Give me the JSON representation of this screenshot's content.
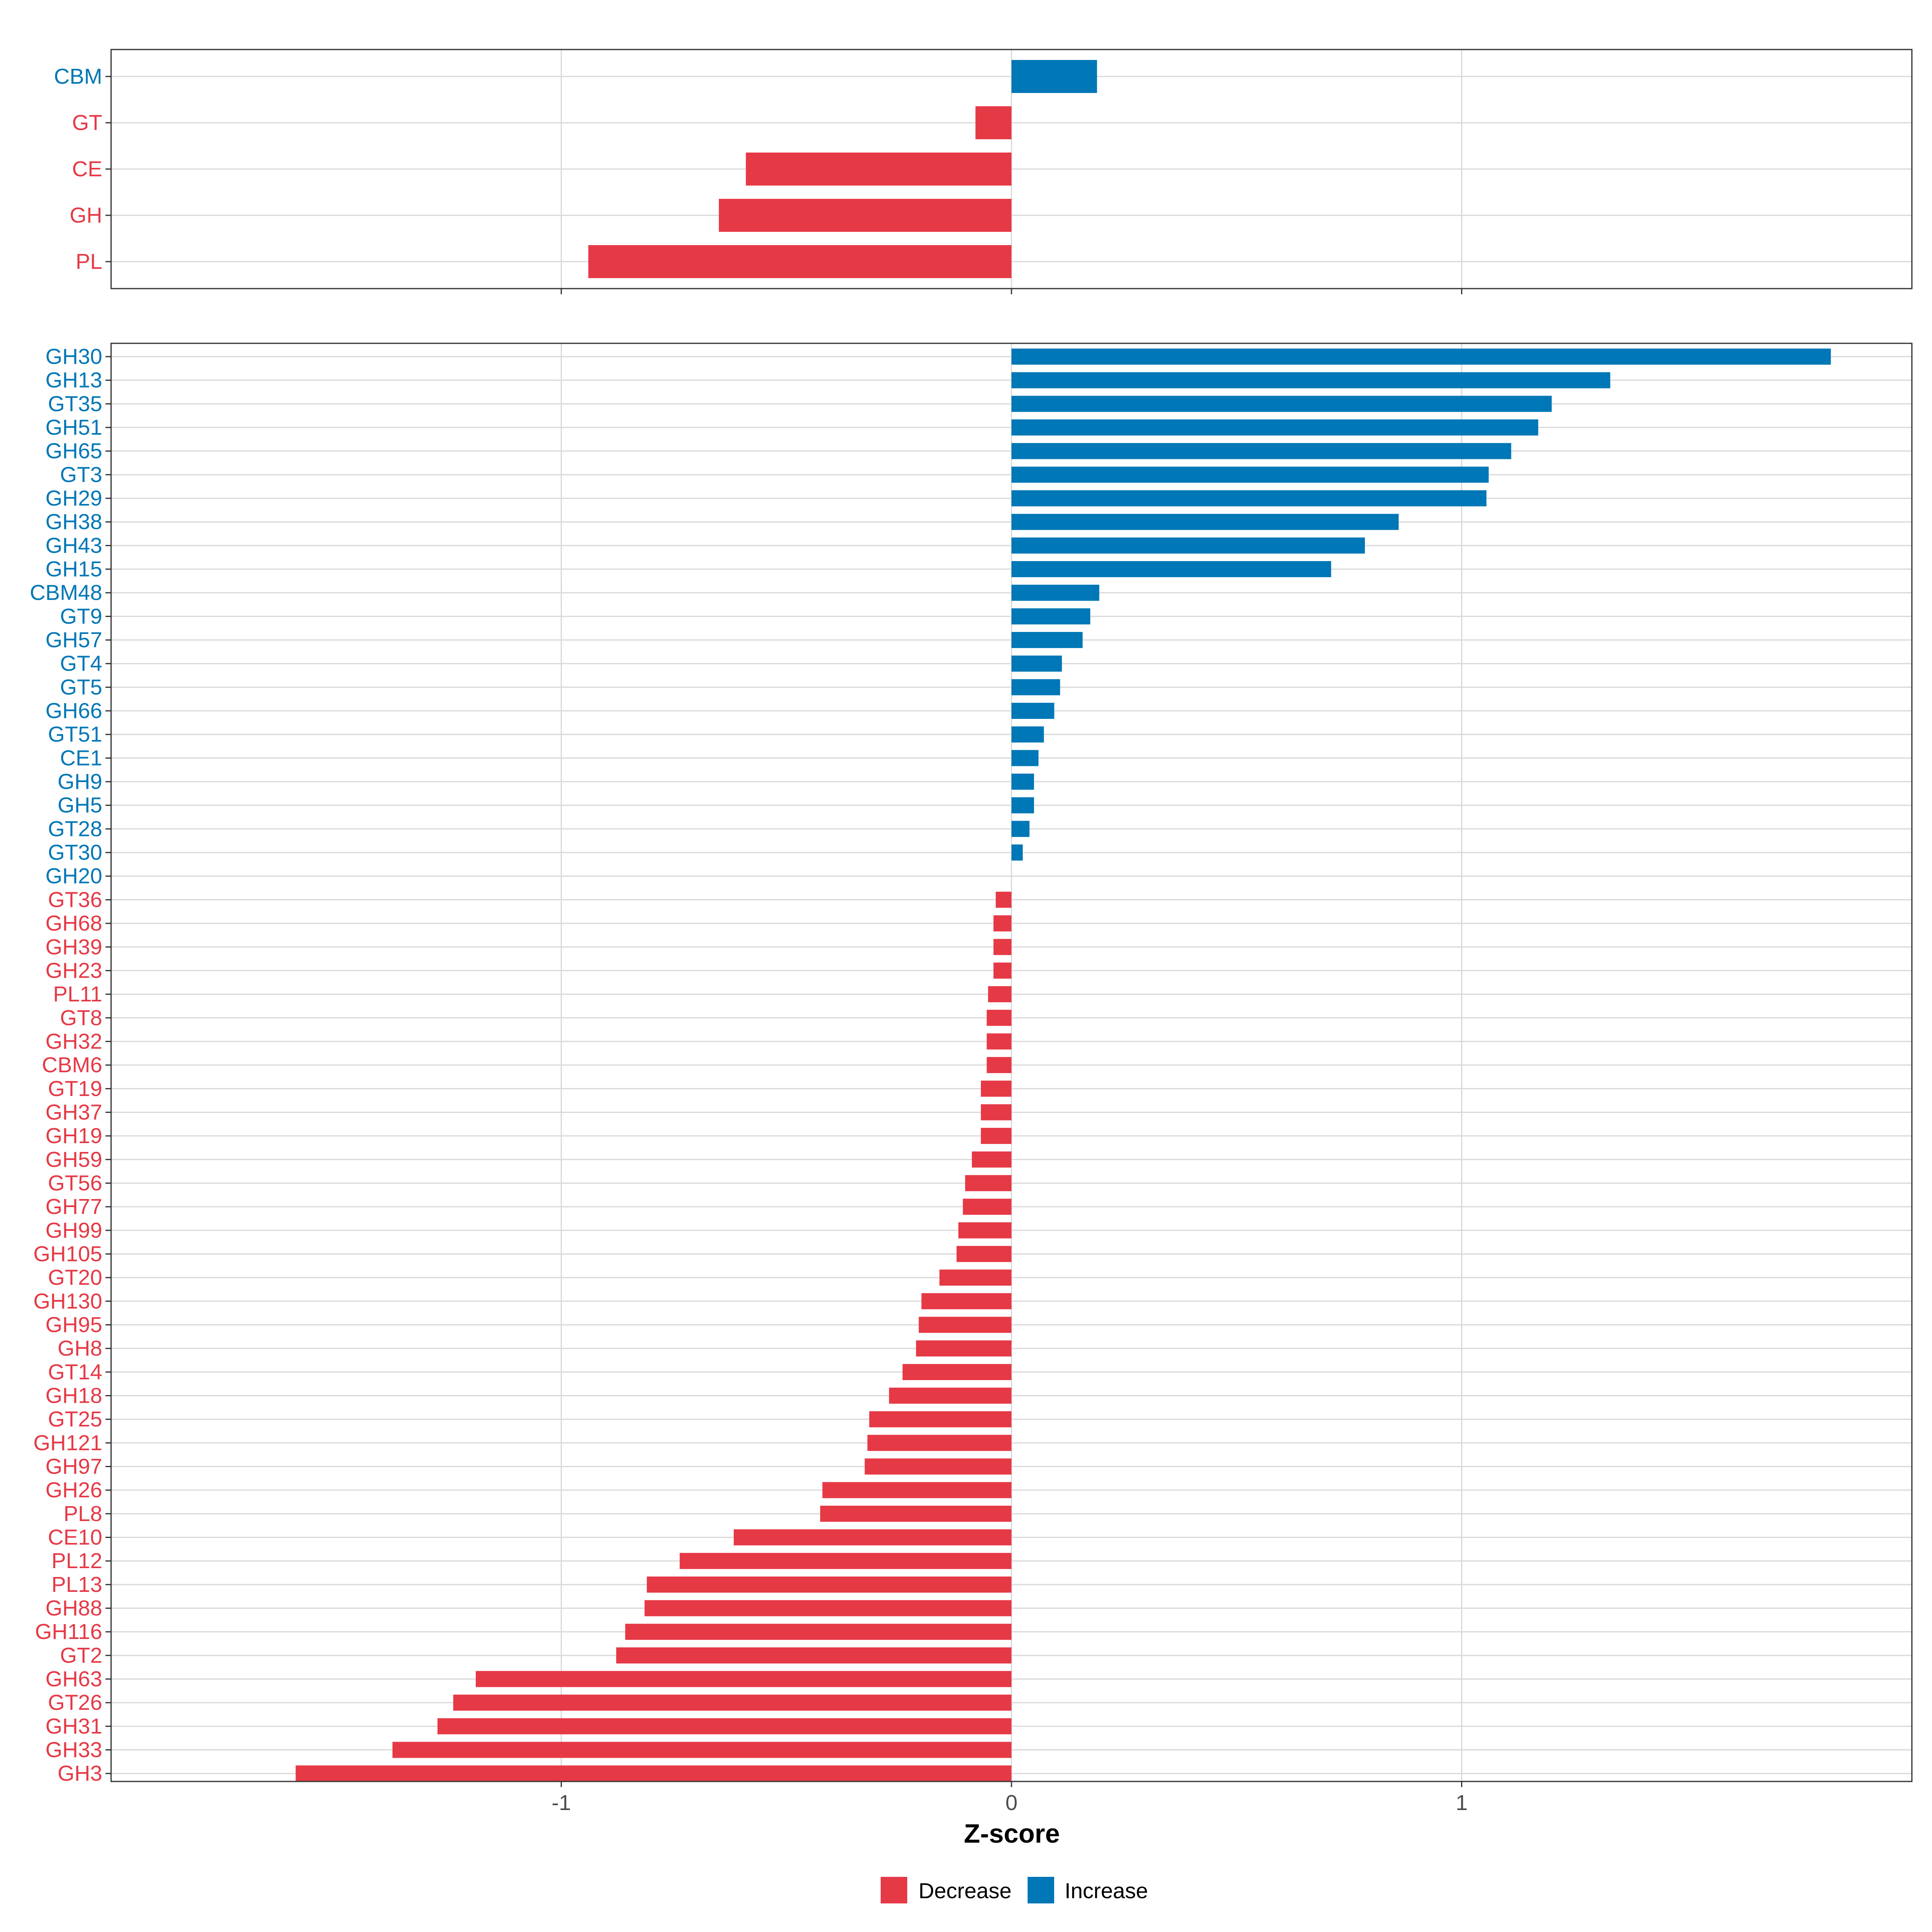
{
  "colors": {
    "decrease": "#E63946",
    "increase": "#0077B6",
    "grid": "#D9D9D9",
    "panel_border": "#333333"
  },
  "chart_data": [
    {
      "type": "bar",
      "orientation": "horizontal",
      "panel": "top",
      "categories": [
        "CBM",
        "GT",
        "CE",
        "GH",
        "PL"
      ],
      "values": [
        0.19,
        -0.08,
        -0.59,
        -0.65,
        -0.94
      ],
      "xlim": [
        -2.0,
        2.0
      ]
    },
    {
      "type": "bar",
      "orientation": "horizontal",
      "panel": "bottom",
      "categories": [
        "GH30",
        "GH13",
        "GT35",
        "GH51",
        "GH65",
        "GT3",
        "GH29",
        "GH38",
        "GH43",
        "GH15",
        "CBM48",
        "GT9",
        "GH57",
        "GT4",
        "GT5",
        "GH66",
        "GT51",
        "CE1",
        "GH9",
        "GH5",
        "GT28",
        "GT30",
        "GH20",
        "GT36",
        "GH68",
        "GH39",
        "GH23",
        "PL11",
        "GT8",
        "GH32",
        "CBM6",
        "GT19",
        "GH37",
        "GH19",
        "GH59",
        "GT56",
        "GH77",
        "GH99",
        "GH105",
        "GT20",
        "GH130",
        "GH95",
        "GH8",
        "GT14",
        "GH18",
        "GT25",
        "GH121",
        "GH97",
        "GH26",
        "PL8",
        "CE10",
        "PL12",
        "PL13",
        "GH88",
        "GH116",
        "GT2",
        "GH63",
        "GT26",
        "GH31",
        "GH33",
        "GH3"
      ],
      "values": [
        1.82,
        1.33,
        1.2,
        1.17,
        1.11,
        1.06,
        1.055,
        0.86,
        0.785,
        0.71,
        0.195,
        0.175,
        0.158,
        0.112,
        0.108,
        0.095,
        0.072,
        0.06,
        0.05,
        0.05,
        0.04,
        0.025,
        0.0,
        -0.035,
        -0.04,
        -0.04,
        -0.04,
        -0.052,
        -0.055,
        -0.055,
        -0.055,
        -0.068,
        -0.068,
        -0.068,
        -0.088,
        -0.103,
        -0.108,
        -0.118,
        -0.122,
        -0.16,
        -0.2,
        -0.206,
        -0.212,
        -0.242,
        -0.272,
        -0.316,
        -0.32,
        -0.326,
        -0.42,
        -0.425,
        -0.617,
        -0.737,
        -0.81,
        -0.815,
        -0.858,
        -0.878,
        -1.19,
        -1.24,
        -1.275,
        -1.375,
        -1.59
      ],
      "xlim": [
        -2.0,
        2.0
      ],
      "x_ticks": [
        -1,
        0,
        1
      ],
      "x_tick_labels": [
        "-1",
        "0",
        "1"
      ],
      "xlabel": "Z-score"
    }
  ],
  "legend": {
    "position": "bottom",
    "items": [
      {
        "label": "Decrease",
        "key": "decrease"
      },
      {
        "label": "Increase",
        "key": "increase"
      }
    ]
  }
}
